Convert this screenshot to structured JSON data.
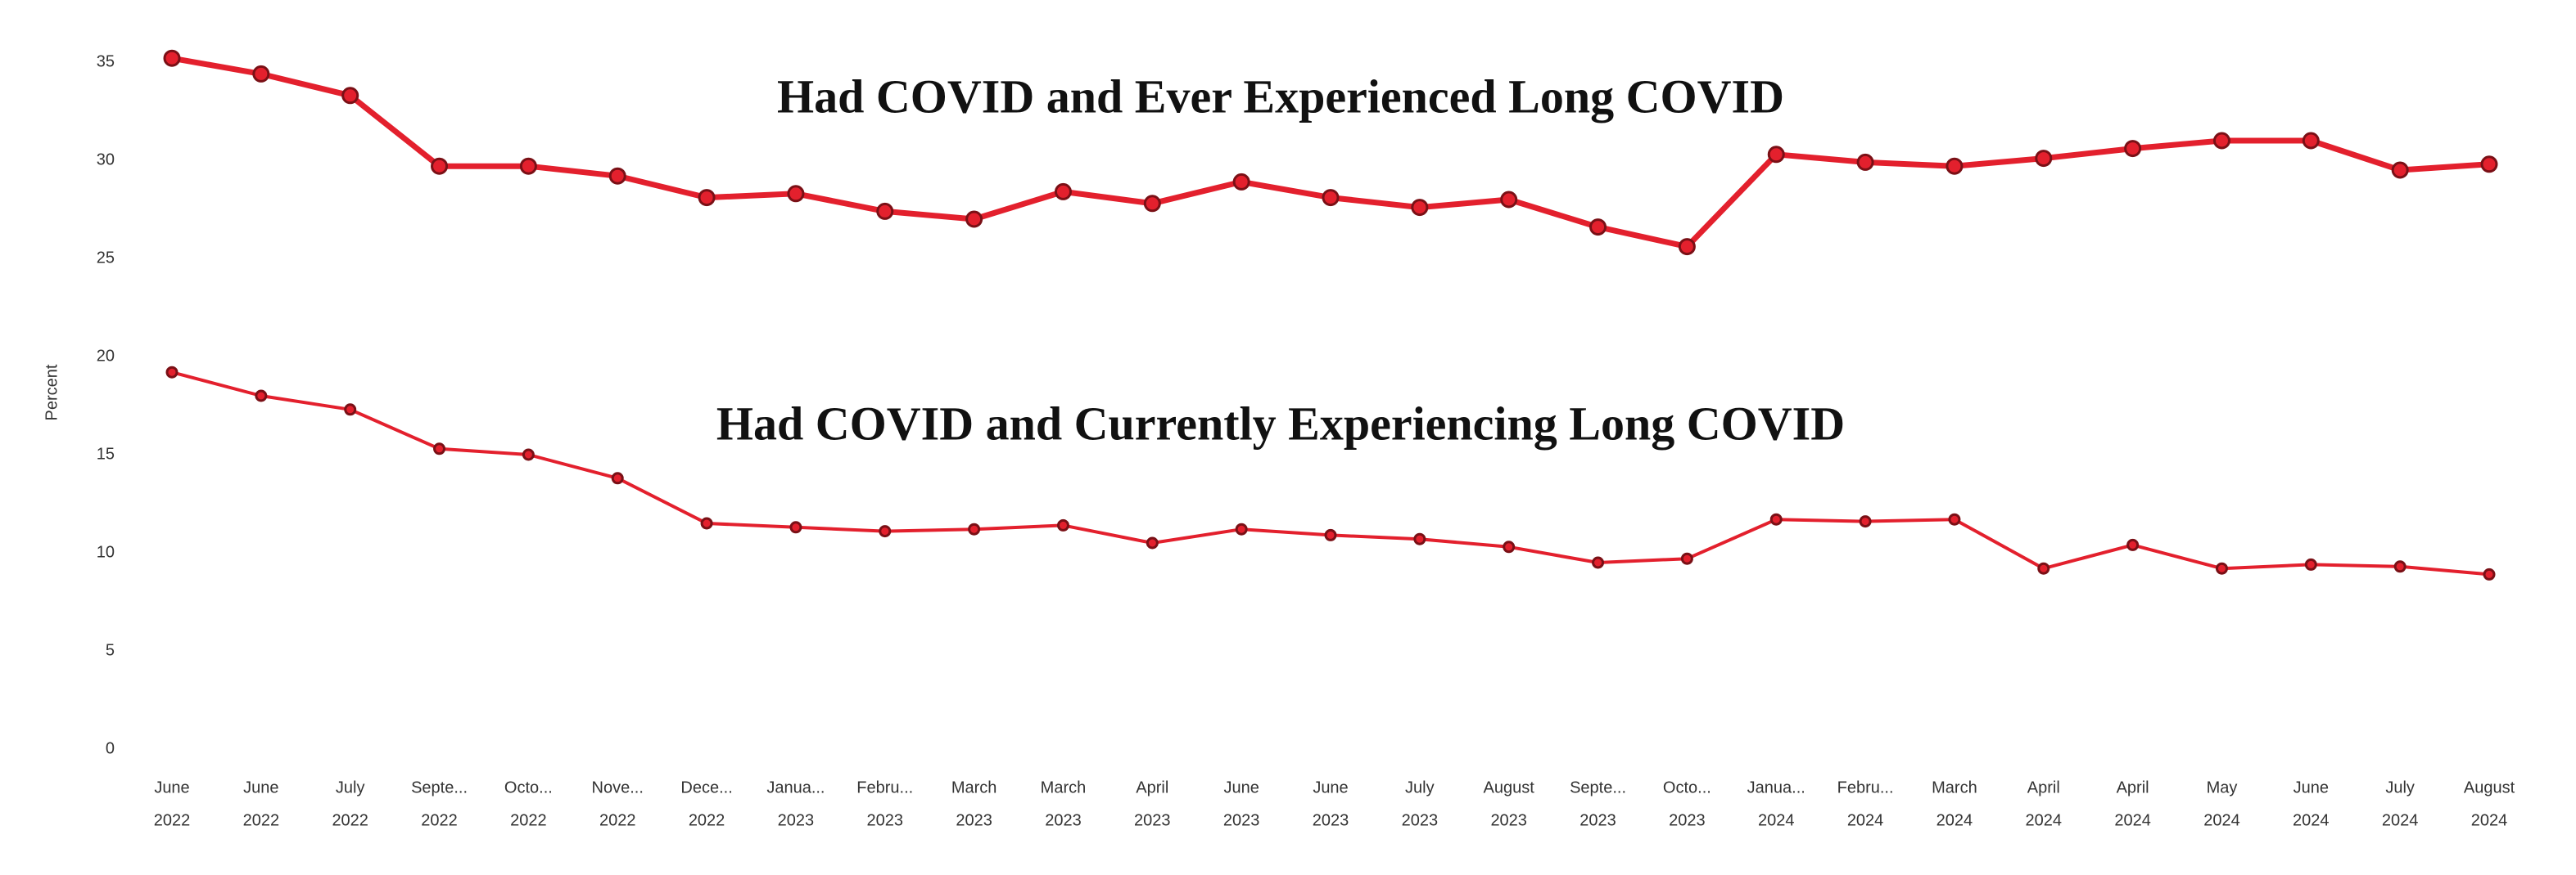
{
  "chart_data": {
    "type": "line",
    "y_label": "Percent",
    "categories": [
      [
        "June",
        "2022"
      ],
      [
        "June",
        "2022"
      ],
      [
        "July",
        "2022"
      ],
      [
        "Septe...",
        "2022"
      ],
      [
        "Octo...",
        "2022"
      ],
      [
        "Nove...",
        "2022"
      ],
      [
        "Dece...",
        "2022"
      ],
      [
        "Janua...",
        "2023"
      ],
      [
        "Febru...",
        "2023"
      ],
      [
        "March",
        "2023"
      ],
      [
        "March",
        "2023"
      ],
      [
        "April",
        "2023"
      ],
      [
        "June",
        "2023"
      ],
      [
        "June",
        "2023"
      ],
      [
        "July",
        "2023"
      ],
      [
        "August",
        "2023"
      ],
      [
        "Septe...",
        "2023"
      ],
      [
        "Octo...",
        "2023"
      ],
      [
        "Janua...",
        "2024"
      ],
      [
        "Febru...",
        "2024"
      ],
      [
        "March",
        "2024"
      ],
      [
        "April",
        "2024"
      ],
      [
        "April",
        "2024"
      ],
      [
        "May",
        "2024"
      ],
      [
        "June",
        "2024"
      ],
      [
        "July",
        "2024"
      ],
      [
        "August",
        "2024"
      ]
    ],
    "series": [
      {
        "name": "Had COVID and Ever Experienced Long COVID",
        "color": "#e3202d",
        "values": [
          35.2,
          34.4,
          33.3,
          29.7,
          29.7,
          29.2,
          28.1,
          28.3,
          27.4,
          27.0,
          28.4,
          27.8,
          28.9,
          28.1,
          27.6,
          28.0,
          26.6,
          25.6,
          30.3,
          29.9,
          29.7,
          30.1,
          30.6,
          31.0,
          31.0,
          29.5,
          29.8
        ]
      },
      {
        "name": "Had COVID and Currently Experiencing Long COVID",
        "color": "#e3202d",
        "values": [
          19.2,
          18.0,
          17.3,
          15.3,
          15.0,
          13.8,
          11.5,
          11.3,
          11.1,
          11.2,
          11.4,
          10.5,
          11.2,
          10.9,
          10.7,
          10.3,
          9.5,
          9.7,
          11.7,
          11.6,
          11.7,
          9.2,
          10.4,
          9.2,
          9.4,
          9.3,
          8.9
        ]
      }
    ],
    "ylim": [
      0,
      35
    ],
    "yticks": [
      0,
      5,
      10,
      15,
      20,
      25,
      30,
      35
    ],
    "grid": false
  }
}
